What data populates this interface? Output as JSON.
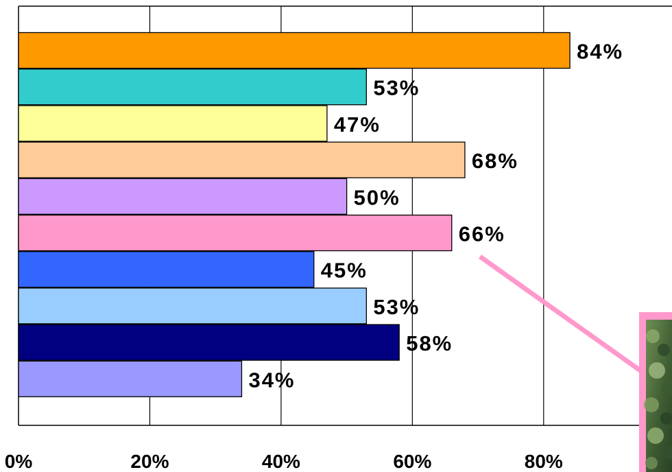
{
  "chart_data": {
    "type": "bar",
    "orientation": "horizontal",
    "title": "",
    "xlabel": "",
    "ylabel": "",
    "xlim": [
      0,
      100
    ],
    "x_ticks": [
      0,
      20,
      40,
      60,
      80
    ],
    "x_tick_labels": [
      "0%",
      "20%",
      "40%",
      "60%",
      "80%"
    ],
    "grid": "vertical",
    "legend": "none",
    "values": [
      84,
      53,
      47,
      68,
      50,
      66,
      45,
      53,
      58,
      34
    ],
    "data_labels": [
      "84%",
      "53%",
      "47%",
      "68%",
      "50%",
      "66%",
      "45%",
      "53%",
      "58%",
      "34%"
    ],
    "bar_colors": [
      "#FF9900",
      "#33CCCC",
      "#FFFF99",
      "#FFCC99",
      "#CC99FF",
      "#FF99CC",
      "#3366FF",
      "#99CCFF",
      "#000080",
      "#9999FF"
    ],
    "annotation": {
      "pointer_color": "#FF99CC",
      "photo_border_color": "#FF99CC",
      "photo_content": "foliage-photo"
    }
  }
}
